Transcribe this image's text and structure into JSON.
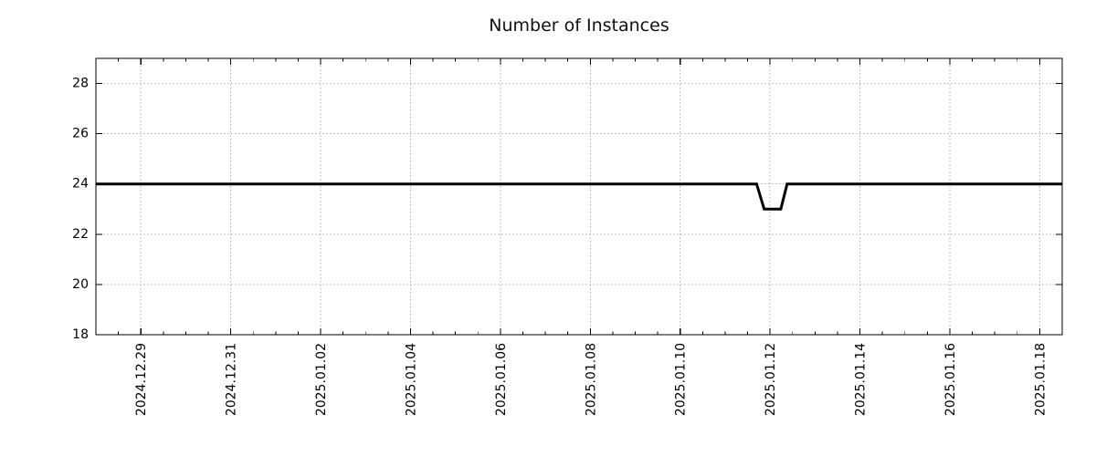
{
  "title": "Number of Instances",
  "colors": {
    "line": "#000000",
    "grid": "#b0b0b0",
    "axis": "#000000",
    "text": "#111111",
    "background": "#ffffff"
  },
  "chart_data": {
    "type": "line",
    "title": "Number of Instances",
    "xlabel": "",
    "ylabel": "",
    "grid": true,
    "legend": false,
    "x_axis": {
      "day0": "2024-12-28",
      "xlim_days": [
        0,
        21.5
      ],
      "major_tick_days": [
        1,
        3,
        5,
        7,
        9,
        11,
        13,
        15,
        17,
        19,
        21
      ],
      "tick_labels": [
        "2024.12.29",
        "2024.12.31",
        "2025.01.02",
        "2025.01.04",
        "2025.01.06",
        "2025.01.08",
        "2025.01.10",
        "2025.01.12",
        "2025.01.14",
        "2025.01.16",
        "2025.01.18"
      ],
      "minor_tick_step_days": 0.5
    },
    "y_axis": {
      "ylim": [
        18,
        29
      ],
      "tick_values": [
        18,
        20,
        22,
        24,
        26,
        28
      ],
      "tick_labels": [
        "18",
        "20",
        "22",
        "24",
        "26",
        "28"
      ]
    },
    "series": [
      {
        "name": "Number of Instances",
        "points_days": [
          [
            0,
            24
          ],
          [
            14.7,
            24
          ],
          [
            14.87,
            23
          ],
          [
            15.24,
            23
          ],
          [
            15.38,
            24
          ],
          [
            21.5,
            24
          ]
        ],
        "points_readable": [
          {
            "time": "2024-12-28 00:00",
            "value": 24
          },
          {
            "time": "2025-01-11 17:00",
            "value": 24
          },
          {
            "time": "2025-01-11 21:00",
            "value": 23
          },
          {
            "time": "2025-01-12 06:00",
            "value": 23
          },
          {
            "time": "2025-01-12 09:00",
            "value": 24
          },
          {
            "time": "2025-01-18 12:00",
            "value": 24
          }
        ]
      }
    ]
  }
}
